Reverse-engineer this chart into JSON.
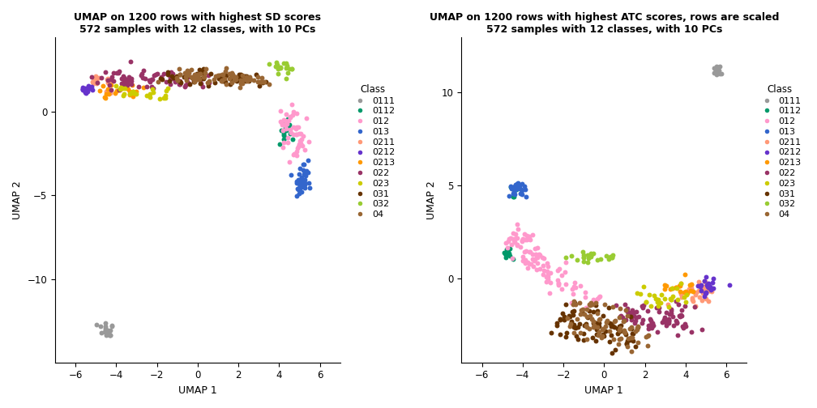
{
  "title1": "UMAP on 1200 rows with highest SD scores\n572 samples with 12 classes, with 10 PCs",
  "title2": "UMAP on 1200 rows with highest ATC scores, rows are scaled\n572 samples with 12 classes, with 10 PCs",
  "xlabel": "UMAP 1",
  "ylabel": "UMAP 2",
  "classes": [
    "0111",
    "0112",
    "012",
    "013",
    "0211",
    "0212",
    "0213",
    "022",
    "023",
    "031",
    "032",
    "04"
  ],
  "colors": {
    "0111": "#999999",
    "0112": "#00996A",
    "012": "#FF99CC",
    "013": "#3366CC",
    "0211": "#FF9977",
    "0212": "#6633CC",
    "0213": "#FF9900",
    "022": "#993366",
    "023": "#CCCC00",
    "031": "#663300",
    "032": "#99CC33",
    "04": "#996633"
  },
  "point_size": 18
}
